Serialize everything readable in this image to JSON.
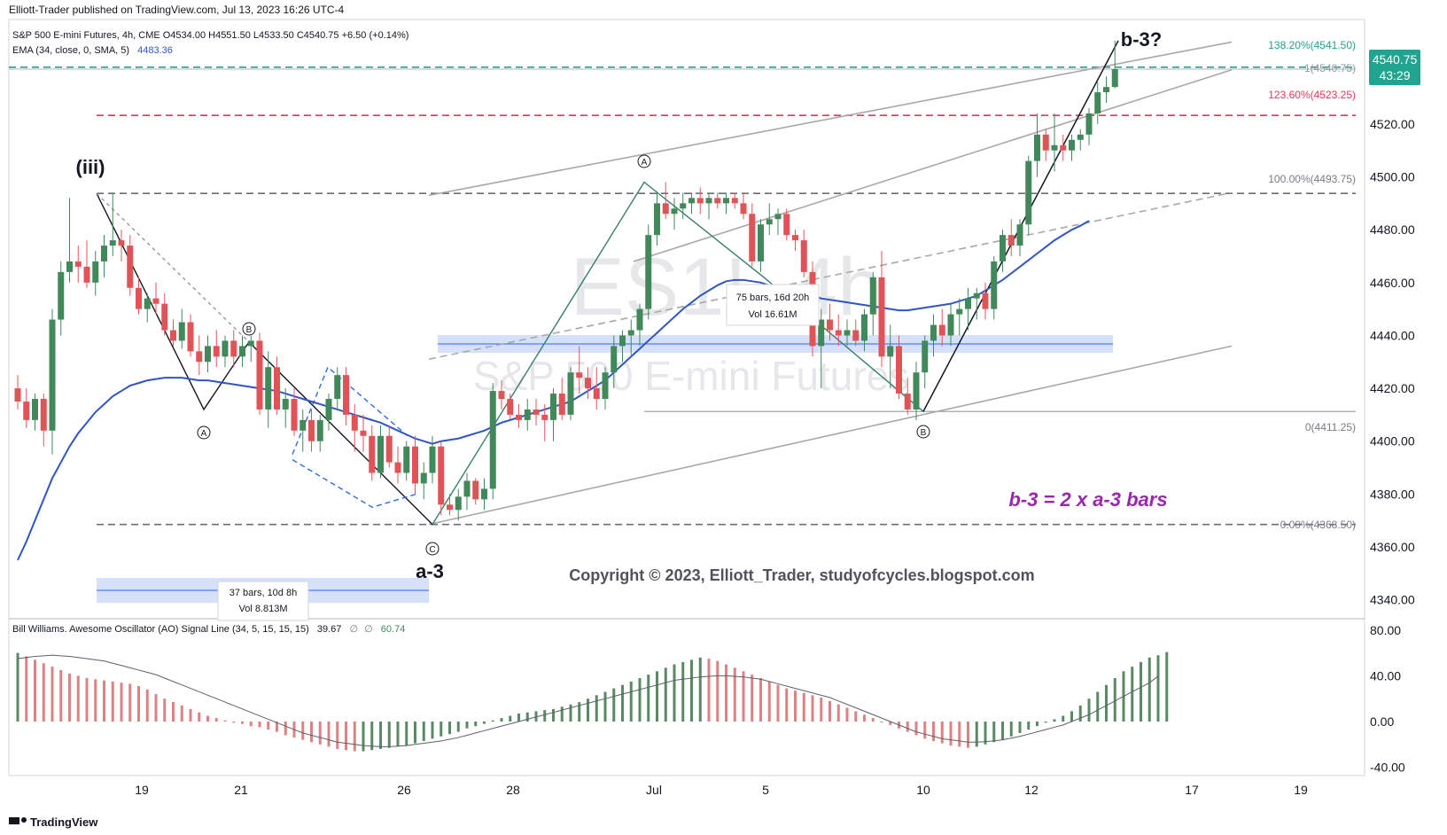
{
  "header": {
    "publish_line": "Elliott-Trader published on TradingView.com, Jul 13, 2023 16:26 UTC-4",
    "symbol_line": "S&P 500 E-mini Futures, 4h, CME  O4534.00  H4551.50  L4533.50  C4540.75  +6.50 (+0.14%)",
    "ema_label": "EMA (34, close, 0, SMA, 5)",
    "ema_value": "4483.36"
  },
  "watermark": {
    "symbol": "ES1!, 4h",
    "name": "S&P 500 E-mini Futures"
  },
  "price_axis": {
    "ticks": [
      "4540.75",
      "4520.00",
      "4500.00",
      "4480.00",
      "4460.00",
      "4440.00",
      "4420.00",
      "4400.00",
      "4380.00",
      "4360.00",
      "4340.00"
    ],
    "last_price": "4540.75",
    "countdown": "43:29"
  },
  "time_axis": {
    "ticks": [
      "19",
      "21",
      "26",
      "28",
      "Jul",
      "5",
      "10",
      "12",
      "17",
      "19"
    ]
  },
  "fib_labels": {
    "f1382": "138.20%(4541.50)",
    "f1": "1(4540.75)",
    "f1236": "123.60%(4523.25)",
    "f100": "100.00%(4493.75)",
    "f0": "0(4411.25)",
    "f000": "0.00%(4368.50)"
  },
  "wave_labels": {
    "iii": "(iii)",
    "a3": "a-3",
    "b3": "b-3?",
    "A": "A",
    "B": "B",
    "C": "C"
  },
  "annotations": {
    "ratio": "b-3 = 2 x a-3 bars",
    "copyright": "Copyright © 2023, Elliott_Trader, studyofcycles.blogspot.com",
    "range1_bars": "37 bars, 10d 8h",
    "range1_vol": "Vol 8.813M",
    "range2_bars": "75 bars, 16d 20h",
    "range2_vol": "Vol 16.61M"
  },
  "oscillator": {
    "legend": "Bill Williams. Awesome Oscillator (AO) Signal Line (34, 5, 15, 15, 15)",
    "value1": "39.67",
    "value2": "60.74",
    "ticks": [
      "80.00",
      "40.00",
      "0.00",
      "-40.00"
    ]
  },
  "footer": {
    "brand": "TradingView"
  },
  "colors": {
    "up": "#41895a",
    "down": "#e05458",
    "ema": "#2f55c7",
    "fib_green": "#20a48f",
    "fib_red": "#e8365a",
    "fib_gray": "#787b86",
    "channel": "#a8a8aa",
    "ao_green": "#5a8a63",
    "ao_red": "#dc8284",
    "note_purple": "#9b27b0",
    "range_fill": "#cfdcf8"
  },
  "chart_data": {
    "type": "candlestick",
    "title": "S&P 500 E-mini Futures, 4h, CME",
    "ylim": [
      4335,
      4560
    ],
    "y_ticks": [
      4340,
      4360,
      4380,
      4400,
      4420,
      4440,
      4460,
      4480,
      4500,
      4520
    ],
    "x_labels": [
      "19",
      "21",
      "26",
      "28",
      "Jul",
      "5",
      "10",
      "12",
      "17",
      "19"
    ],
    "ohlc": [
      [
        4420,
        4425,
        4412,
        4415
      ],
      [
        4415,
        4420,
        4405,
        4408
      ],
      [
        4408,
        4418,
        4404,
        4416
      ],
      [
        4416,
        4418,
        4398,
        4404
      ],
      [
        4404,
        4450,
        4395,
        4446
      ],
      [
        4446,
        4468,
        4440,
        4464
      ],
      [
        4464,
        4492,
        4460,
        4468
      ],
      [
        4468,
        4474,
        4460,
        4466
      ],
      [
        4466,
        4476,
        4458,
        4460
      ],
      [
        4460,
        4472,
        4455,
        4468
      ],
      [
        4468,
        4478,
        4462,
        4474
      ],
      [
        4474,
        4494,
        4470,
        4476
      ],
      [
        4476,
        4480,
        4468,
        4474
      ],
      [
        4474,
        4478,
        4455,
        4458
      ],
      [
        4458,
        4462,
        4448,
        4450
      ],
      [
        4450,
        4456,
        4445,
        4454
      ],
      [
        4454,
        4460,
        4448,
        4452
      ],
      [
        4452,
        4456,
        4440,
        4442
      ],
      [
        4442,
        4446,
        4436,
        4438
      ],
      [
        4438,
        4450,
        4435,
        4445
      ],
      [
        4445,
        4448,
        4432,
        4434
      ],
      [
        4434,
        4440,
        4425,
        4430
      ],
      [
        4430,
        4440,
        4426,
        4436
      ],
      [
        4436,
        4442,
        4428,
        4432
      ],
      [
        4432,
        4440,
        4428,
        4438
      ],
      [
        4438,
        4442,
        4428,
        4432
      ],
      [
        4432,
        4440,
        4428,
        4436
      ],
      [
        4436,
        4440,
        4430,
        4438
      ],
      [
        4438,
        4441,
        4410,
        4412
      ],
      [
        4412,
        4434,
        4405,
        4428
      ],
      [
        4428,
        4432,
        4410,
        4412
      ],
      [
        4412,
        4420,
        4405,
        4416
      ],
      [
        4416,
        4420,
        4402,
        4404
      ],
      [
        4404,
        4412,
        4396,
        4408
      ],
      [
        4408,
        4412,
        4396,
        4400
      ],
      [
        4400,
        4410,
        4396,
        4408
      ],
      [
        4408,
        4418,
        4404,
        4416
      ],
      [
        4416,
        4428,
        4412,
        4425
      ],
      [
        4425,
        4428,
        4406,
        4410
      ],
      [
        4410,
        4414,
        4396,
        4404
      ],
      [
        4404,
        4410,
        4396,
        4402
      ],
      [
        4402,
        4406,
        4385,
        4388
      ],
      [
        4388,
        4406,
        4386,
        4402
      ],
      [
        4402,
        4406,
        4390,
        4392
      ],
      [
        4392,
        4398,
        4384,
        4388
      ],
      [
        4388,
        4400,
        4385,
        4398
      ],
      [
        4398,
        4402,
        4380,
        4384
      ],
      [
        4384,
        4392,
        4378,
        4388
      ],
      [
        4388,
        4402,
        4384,
        4398
      ],
      [
        4398,
        4400,
        4372,
        4376
      ],
      [
        4376,
        4380,
        4372,
        4374
      ],
      [
        4374,
        4382,
        4370,
        4379
      ],
      [
        4379,
        4388,
        4374,
        4385
      ],
      [
        4385,
        4386,
        4376,
        4378
      ],
      [
        4378,
        4386,
        4374,
        4382
      ],
      [
        4382,
        4422,
        4378,
        4419
      ],
      [
        4419,
        4423,
        4412,
        4416
      ],
      [
        4416,
        4418,
        4408,
        4410
      ],
      [
        4410,
        4414,
        4405,
        4408
      ],
      [
        4408,
        4416,
        4404,
        4412
      ],
      [
        4412,
        4416,
        4406,
        4410
      ],
      [
        4410,
        4414,
        4400,
        4408
      ],
      [
        4408,
        4420,
        4400,
        4418
      ],
      [
        4418,
        4424,
        4408,
        4410
      ],
      [
        4410,
        4428,
        4408,
        4426
      ],
      [
        4426,
        4436,
        4418,
        4424
      ],
      [
        4424,
        4428,
        4416,
        4420
      ],
      [
        4420,
        4428,
        4412,
        4416
      ],
      [
        4416,
        4428,
        4412,
        4426
      ],
      [
        4426,
        4440,
        4420,
        4436
      ],
      [
        4436,
        4442,
        4430,
        4440
      ],
      [
        4440,
        4446,
        4432,
        4442
      ],
      [
        4442,
        4452,
        4436,
        4450
      ],
      [
        4450,
        4482,
        4446,
        4478
      ],
      [
        4478,
        4494,
        4474,
        4490
      ],
      [
        4490,
        4498,
        4484,
        4486
      ],
      [
        4486,
        4492,
        4480,
        4488
      ],
      [
        4488,
        4494,
        4484,
        4490
      ],
      [
        4490,
        4494,
        4486,
        4492
      ],
      [
        4492,
        4496,
        4486,
        4490
      ],
      [
        4490,
        4494,
        4484,
        4492
      ],
      [
        4492,
        4494,
        4488,
        4490
      ],
      [
        4490,
        4494,
        4486,
        4492
      ],
      [
        4492,
        4494,
        4488,
        4490
      ],
      [
        4490,
        4494,
        4484,
        4486
      ],
      [
        4486,
        4490,
        4466,
        4468
      ],
      [
        4468,
        4484,
        4464,
        4482
      ],
      [
        4482,
        4490,
        4478,
        4484
      ],
      [
        4484,
        4488,
        4478,
        4486
      ],
      [
        4486,
        4488,
        4476,
        4478
      ],
      [
        4478,
        4480,
        4472,
        4476
      ],
      [
        4476,
        4480,
        4462,
        4464
      ],
      [
        4464,
        4468,
        4432,
        4436
      ],
      [
        4436,
        4450,
        4420,
        4446
      ],
      [
        4446,
        4452,
        4438,
        4442
      ],
      [
        4442,
        4448,
        4436,
        4440
      ],
      [
        4440,
        4446,
        4436,
        4442
      ],
      [
        4442,
        4446,
        4436,
        4438
      ],
      [
        4438,
        4450,
        4434,
        4448
      ],
      [
        4448,
        4464,
        4440,
        4462
      ],
      [
        4462,
        4472,
        4428,
        4432
      ],
      [
        4432,
        4444,
        4420,
        4436
      ],
      [
        4436,
        4440,
        4416,
        4418
      ],
      [
        4418,
        4424,
        4410,
        4412
      ],
      [
        4412,
        4430,
        4408,
        4426
      ],
      [
        4426,
        4440,
        4420,
        4438
      ],
      [
        4438,
        4448,
        4432,
        4444
      ],
      [
        4444,
        4450,
        4436,
        4440
      ],
      [
        4440,
        4452,
        4436,
        4448
      ],
      [
        4448,
        4454,
        4440,
        4450
      ],
      [
        4450,
        4458,
        4442,
        4454
      ],
      [
        4454,
        4458,
        4446,
        4456
      ],
      [
        4456,
        4460,
        4446,
        4450
      ],
      [
        4450,
        4470,
        4446,
        4468
      ],
      [
        4468,
        4480,
        4464,
        4478
      ],
      [
        4478,
        4484,
        4470,
        4474
      ],
      [
        4474,
        4484,
        4470,
        4482
      ],
      [
        4482,
        4508,
        4478,
        4506
      ],
      [
        4506,
        4524,
        4500,
        4516
      ],
      [
        4516,
        4518,
        4506,
        4510
      ],
      [
        4510,
        4524,
        4502,
        4512
      ],
      [
        4512,
        4516,
        4506,
        4510
      ],
      [
        4510,
        4516,
        4506,
        4514
      ],
      [
        4514,
        4518,
        4510,
        4516
      ],
      [
        4516,
        4526,
        4512,
        4524
      ],
      [
        4524,
        4536,
        4520,
        4532
      ],
      [
        4532,
        4538,
        4528,
        4534
      ],
      [
        4534,
        4551.5,
        4533.5,
        4540.75
      ]
    ],
    "ema_34": [
      4355,
      4362,
      4370,
      4378,
      4386,
      4392,
      4398,
      4403,
      4407,
      4411,
      4414,
      4417,
      4419,
      4421,
      4422,
      4423,
      4423.5,
      4424,
      4424,
      4424,
      4423.5,
      4423,
      4423,
      4422.5,
      4422,
      4421.5,
      4421,
      4420.5,
      4420,
      4419.5,
      4419,
      4418,
      4417,
      4416,
      4415,
      4414,
      4413,
      4412,
      4411,
      4410,
      4409,
      4408,
      4407,
      4405.5,
      4404,
      4402.5,
      4401,
      4400,
      4399,
      4400,
      4400.5,
      4401,
      4402,
      4403,
      4404,
      4405.5,
      4407,
      4408,
      4409,
      4410,
      4411,
      4412,
      4413,
      4414,
      4415,
      4417,
      4419,
      4421,
      4423,
      4426,
      4429,
      4432,
      4435,
      4438,
      4441,
      4444,
      4447,
      4450,
      4452.5,
      4455,
      4457,
      4459,
      4460.5,
      4461,
      4461,
      4460.5,
      4460,
      4459,
      4458,
      4457,
      4456,
      4455.5,
      4455,
      4454,
      4453.5,
      4453,
      4452.5,
      4452,
      4451.5,
      4451,
      4450.5,
      4450,
      4449.5,
      4449.5,
      4450,
      4450.5,
      4451,
      4451.5,
      4452,
      4453,
      4454,
      4455,
      4457,
      4459,
      4461,
      4463.5,
      4466,
      4468.5,
      4471,
      4473.5,
      4476,
      4478,
      4480,
      4481.5,
      4483.36
    ],
    "series": [
      {
        "name": "AO",
        "values": [
          60,
          57,
          54,
          51,
          48,
          45,
          42,
          40,
          38,
          37,
          36,
          35,
          34,
          33,
          31,
          28,
          24,
          20,
          17,
          14,
          11,
          8,
          5,
          3,
          1,
          -1,
          -2,
          -4,
          -5,
          -7,
          -9,
          -12,
          -14,
          -16,
          -18,
          -20,
          -22,
          -24,
          -25,
          -26,
          -26,
          -25,
          -24,
          -23,
          -22,
          -21,
          -19,
          -17,
          -15,
          -13,
          -11,
          -9,
          -6,
          -4,
          -2,
          1,
          3,
          5,
          7,
          8,
          9,
          10,
          11,
          13,
          15,
          17,
          20,
          23,
          26,
          29,
          32,
          35,
          38,
          41,
          44,
          47,
          50,
          52,
          54,
          56,
          55,
          53,
          50,
          47,
          44,
          41,
          38,
          35,
          32,
          29,
          27,
          25,
          23,
          21,
          18,
          15,
          12,
          9,
          6,
          3,
          0,
          -3,
          -6,
          -9,
          -12,
          -15,
          -17,
          -19,
          -21,
          -22,
          -23,
          -22,
          -20,
          -18,
          -16,
          -13,
          -10,
          -7,
          -4,
          -1,
          2,
          5,
          9,
          14,
          20,
          26,
          32,
          38,
          44,
          48,
          52,
          56,
          58,
          60.74
        ]
      },
      {
        "name": "Signal Line",
        "values": [
          55,
          56,
          57,
          57.5,
          58,
          57.5,
          57,
          56,
          55,
          54,
          53,
          51,
          49,
          47,
          45,
          43,
          41,
          38,
          35,
          32,
          29,
          26,
          23,
          20,
          17,
          14,
          11,
          8,
          5,
          2,
          -1,
          -4,
          -7,
          -10,
          -12,
          -14,
          -16,
          -18,
          -19,
          -20,
          -21,
          -21.5,
          -22,
          -22,
          -21.5,
          -21,
          -20,
          -19,
          -18,
          -17,
          -15.5,
          -14,
          -12,
          -10,
          -8,
          -6,
          -4,
          -2,
          0,
          2,
          4,
          6,
          8,
          10,
          12,
          14,
          16,
          18,
          20,
          22,
          24,
          26,
          28,
          30,
          32,
          34,
          36,
          37,
          38,
          39,
          39.5,
          40,
          40,
          39.5,
          39,
          38,
          37,
          35,
          33,
          31,
          29,
          27,
          25,
          23,
          21,
          18,
          15,
          12,
          9,
          6,
          3,
          0,
          -3,
          -6,
          -9,
          -11,
          -13,
          -15,
          -16,
          -17,
          -18,
          -18,
          -17.5,
          -17,
          -16,
          -14.5,
          -13,
          -11,
          -9,
          -7,
          -5,
          -3,
          0,
          3,
          6,
          10,
          14,
          18,
          22,
          26,
          30,
          34,
          39.67
        ]
      }
    ],
    "fib_levels": [
      {
        "ratio": "138.20%",
        "price": 4541.5
      },
      {
        "ratio": "1",
        "price": 4540.75
      },
      {
        "ratio": "123.60%",
        "price": 4523.25
      },
      {
        "ratio": "100.00%",
        "price": 4493.75
      },
      {
        "ratio": "0",
        "price": 4411.25
      },
      {
        "ratio": "0.00%",
        "price": 4368.5
      }
    ]
  }
}
